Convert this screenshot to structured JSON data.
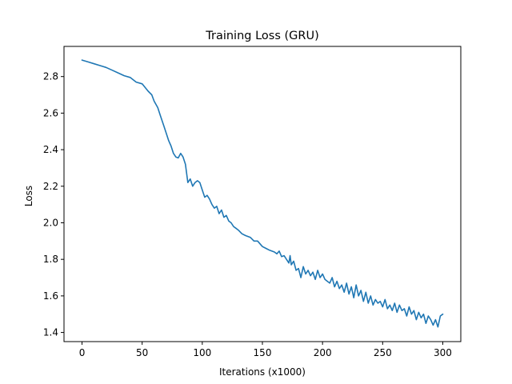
{
  "chart_data": {
    "type": "line",
    "title": "Training Loss (GRU)",
    "xlabel": "Iterations (x1000)",
    "ylabel": "Loss",
    "xlim": [
      -15,
      315
    ],
    "ylim": [
      1.35,
      2.965
    ],
    "xticks": [
      0,
      50,
      100,
      150,
      200,
      250,
      300
    ],
    "yticks": [
      1.4,
      1.6,
      1.8,
      2.0,
      2.2,
      2.4,
      2.6,
      2.8
    ],
    "xtick_labels": [
      "0",
      "50",
      "100",
      "150",
      "200",
      "250",
      "300"
    ],
    "ytick_labels": [
      "1.4",
      "1.6",
      "1.8",
      "2.0",
      "2.2",
      "2.4",
      "2.6",
      "2.8"
    ],
    "grid": false,
    "line_color": "#1f77b4",
    "series": [
      {
        "x": [
          0,
          5,
          10,
          15,
          20,
          25,
          30,
          35,
          40,
          45,
          50,
          55,
          58,
          60,
          63,
          65,
          68,
          70,
          72,
          74,
          76,
          78,
          80,
          82,
          84,
          86,
          88,
          90,
          92,
          94,
          96,
          98,
          100,
          102,
          104,
          106,
          108,
          110,
          112,
          114,
          116,
          118,
          120,
          122,
          124,
          126,
          128,
          130,
          133,
          136,
          140,
          143,
          146,
          150,
          153,
          156,
          160,
          162,
          164,
          166,
          168,
          170,
          172,
          173,
          174,
          176,
          178,
          180,
          182,
          184,
          186,
          188,
          190,
          192,
          194,
          196,
          198,
          200,
          202,
          204,
          206,
          208,
          210,
          212,
          214,
          216,
          218,
          220,
          222,
          224,
          226,
          228,
          230,
          232,
          234,
          236,
          238,
          240,
          242,
          244,
          246,
          248,
          250,
          252,
          254,
          256,
          258,
          260,
          262,
          264,
          266,
          268,
          270,
          272,
          274,
          276,
          278,
          280,
          282,
          284,
          286,
          288,
          290,
          292,
          294,
          296,
          298,
          300
        ],
        "y": [
          2.89,
          2.88,
          2.87,
          2.86,
          2.85,
          2.835,
          2.82,
          2.805,
          2.795,
          2.77,
          2.76,
          2.72,
          2.7,
          2.665,
          2.63,
          2.59,
          2.53,
          2.49,
          2.45,
          2.42,
          2.38,
          2.36,
          2.355,
          2.38,
          2.36,
          2.32,
          2.22,
          2.24,
          2.2,
          2.22,
          2.23,
          2.22,
          2.18,
          2.14,
          2.15,
          2.13,
          2.1,
          2.08,
          2.09,
          2.05,
          2.07,
          2.03,
          2.04,
          2.01,
          2.0,
          1.98,
          1.97,
          1.96,
          1.94,
          1.93,
          1.92,
          1.9,
          1.9,
          1.87,
          1.86,
          1.85,
          1.84,
          1.83,
          1.845,
          1.815,
          1.82,
          1.8,
          1.78,
          1.82,
          1.77,
          1.79,
          1.74,
          1.75,
          1.7,
          1.76,
          1.72,
          1.74,
          1.71,
          1.73,
          1.69,
          1.74,
          1.7,
          1.72,
          1.69,
          1.68,
          1.67,
          1.7,
          1.65,
          1.68,
          1.64,
          1.66,
          1.62,
          1.67,
          1.61,
          1.65,
          1.59,
          1.66,
          1.6,
          1.63,
          1.57,
          1.62,
          1.56,
          1.6,
          1.55,
          1.58,
          1.56,
          1.57,
          1.54,
          1.58,
          1.53,
          1.55,
          1.52,
          1.56,
          1.51,
          1.55,
          1.52,
          1.53,
          1.49,
          1.54,
          1.5,
          1.52,
          1.47,
          1.51,
          1.48,
          1.5,
          1.45,
          1.49,
          1.47,
          1.44,
          1.47,
          1.43,
          1.49,
          1.5
        ]
      }
    ]
  }
}
